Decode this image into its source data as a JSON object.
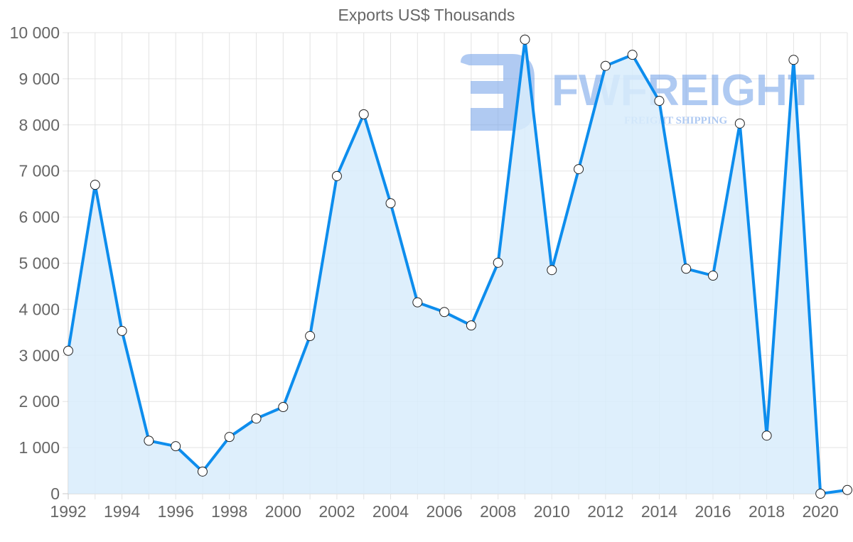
{
  "chart_data": {
    "type": "area",
    "title": "Exports US$ Thousands",
    "xlabel": "",
    "ylabel": "",
    "x": [
      1992,
      1993,
      1994,
      1995,
      1996,
      1997,
      1998,
      1999,
      2000,
      2001,
      2002,
      2003,
      2004,
      2005,
      2006,
      2007,
      2008,
      2009,
      2010,
      2011,
      2012,
      2013,
      2014,
      2015,
      2016,
      2017,
      2018,
      2019,
      2020,
      2021
    ],
    "series": [
      {
        "name": "Exports US$ Thousands",
        "values": [
          3100,
          6700,
          3530,
          1150,
          1030,
          480,
          1230,
          1630,
          1880,
          3420,
          6890,
          8230,
          6300,
          4150,
          3940,
          3650,
          5010,
          9850,
          4850,
          7040,
          9280,
          9520,
          8520,
          4880,
          4730,
          8030,
          1260,
          9410,
          0,
          80
        ],
        "color": "#0d8ded",
        "fill": "#d8ecfc"
      }
    ],
    "ylim": [
      0,
      10000
    ],
    "yticks": [
      "0",
      "1 000",
      "2 000",
      "3 000",
      "4 000",
      "5 000",
      "6 000",
      "7 000",
      "8 000",
      "9 000",
      "10 000"
    ],
    "xticks": [
      "1992",
      "1994",
      "1996",
      "1998",
      "2000",
      "2002",
      "2004",
      "2006",
      "2008",
      "2010",
      "2012",
      "2014",
      "2016",
      "2018",
      "2020"
    ],
    "grid": true,
    "legend": "none"
  },
  "watermark": {
    "brand": "FWFREIGHT",
    "tagline": "FREIGHT SHIPPING",
    "color": "#7ba7ea"
  }
}
